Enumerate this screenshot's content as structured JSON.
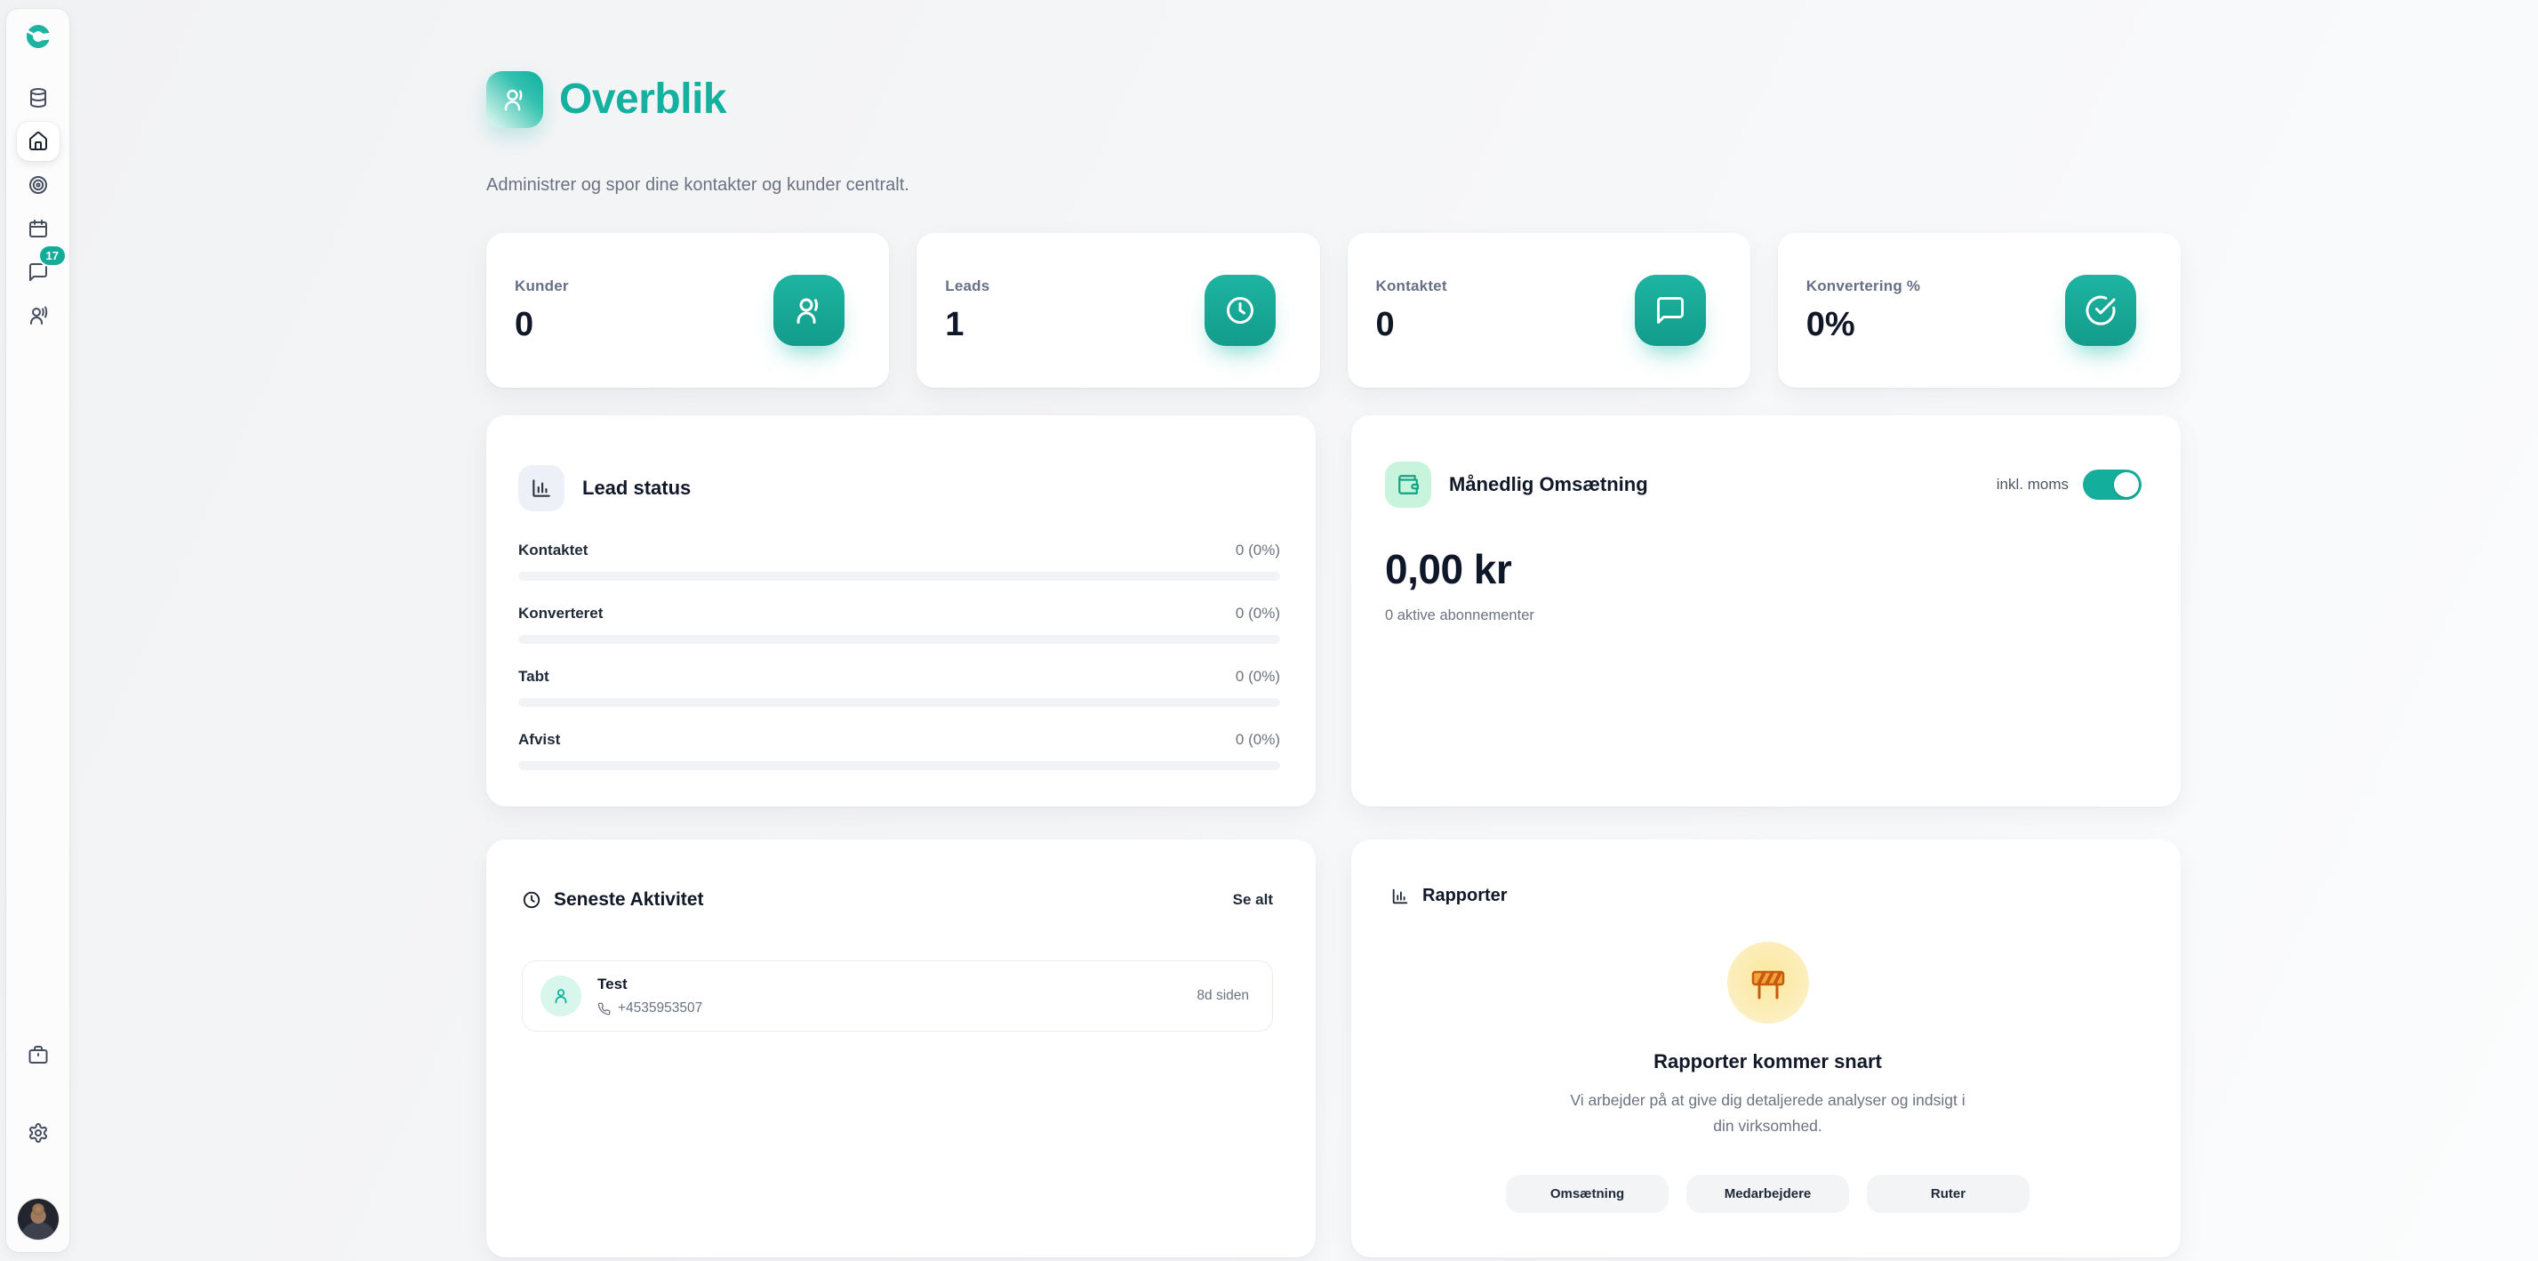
{
  "colors": {
    "accent": "#14ab99",
    "accent_dark": "#129c8b",
    "mint_bg": "#c8f3dc",
    "page_bg": "#f4f5f7",
    "card_bg": "#ffffff",
    "muted_text": "#6b7280",
    "dark_text": "#111827",
    "warning_bubble": "#fceebc"
  },
  "sidebar": {
    "logo": "brand-logo",
    "badge_count": "17",
    "items": [
      {
        "icon": "database-icon",
        "active": false
      },
      {
        "icon": "home-icon",
        "active": true
      },
      {
        "icon": "target-icon",
        "active": false
      },
      {
        "icon": "calendar-icon",
        "active": false
      },
      {
        "icon": "chat-icon",
        "active": false,
        "badge": "17"
      },
      {
        "icon": "team-icon",
        "active": false
      }
    ],
    "footer_items": [
      {
        "icon": "briefcase-icon"
      },
      {
        "icon": "settings-gear-icon"
      },
      {
        "icon": "user-avatar-photo"
      }
    ]
  },
  "header": {
    "icon": "users-icon",
    "title": "Overblik",
    "subtitle": "Administrer og spor dine kontakter og kunder centralt."
  },
  "stats": [
    {
      "label": "Kunder",
      "value": "0",
      "icon": "users-icon"
    },
    {
      "label": "Leads",
      "value": "1",
      "icon": "clock-icon"
    },
    {
      "label": "Kontaktet",
      "value": "0",
      "icon": "chat-bubble-icon"
    },
    {
      "label": "Konvertering %",
      "value": "0%",
      "icon": "check-circle-icon"
    }
  ],
  "lead_status": {
    "icon": "bar-chart-icon",
    "title": "Lead status",
    "rows": [
      {
        "label": "Kontaktet",
        "value": "0 (0%)",
        "percent": 0
      },
      {
        "label": "Konverteret",
        "value": "0 (0%)",
        "percent": 0
      },
      {
        "label": "Tabt",
        "value": "0 (0%)",
        "percent": 0
      },
      {
        "label": "Afvist",
        "value": "0 (0%)",
        "percent": 0
      }
    ]
  },
  "revenue": {
    "icon": "wallet-icon",
    "title": "Månedlig Omsætning",
    "toggle_label": "inkl. moms",
    "toggle_on": true,
    "amount": "0,00 kr",
    "subtitle": "0 aktive abonnementer"
  },
  "activity": {
    "icon": "clock-icon",
    "title": "Seneste Aktivitet",
    "see_all": "Se alt",
    "items": [
      {
        "icon": "person-icon",
        "name": "Test",
        "phone": "+4535953507",
        "time": "8d siden"
      }
    ]
  },
  "reports": {
    "icon": "bar-chart-icon",
    "title": "Rapporter",
    "bubble_icon": "construction-barrier-icon",
    "coming_title": "Rapporter kommer snart",
    "coming_text": "Vi arbejder på at give dig detaljerede analyser og indsigt i din virksomhed.",
    "tags": [
      "Omsætning",
      "Medarbejdere",
      "Ruter"
    ]
  }
}
